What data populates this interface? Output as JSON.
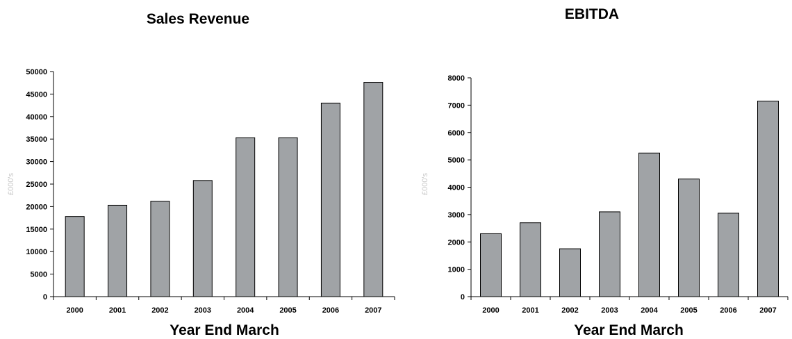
{
  "chart_data": [
    {
      "type": "bar",
      "title": "Sales Revenue",
      "xlabel": "Year End March",
      "ylabel": "£000's",
      "categories": [
        "2000",
        "2001",
        "2002",
        "2003",
        "2004",
        "2005",
        "2006",
        "2007"
      ],
      "values": [
        17800,
        20300,
        21200,
        25800,
        35300,
        35300,
        43000,
        47600
      ],
      "ylim": [
        0,
        50000
      ],
      "yticks": [
        "0",
        "5000",
        "10000",
        "15000",
        "20000",
        "25000",
        "30000",
        "35000",
        "40000",
        "45000",
        "50000"
      ],
      "bar_color": "#a0a3a6",
      "grid": false,
      "legend": "none"
    },
    {
      "type": "bar",
      "title": "EBITDA",
      "xlabel": "Year End March",
      "ylabel": "£000's",
      "categories": [
        "2000",
        "2001",
        "2002",
        "2003",
        "2004",
        "2005",
        "2006",
        "2007"
      ],
      "values": [
        2300,
        2700,
        1750,
        3100,
        5250,
        4300,
        3050,
        7150
      ],
      "ylim": [
        0,
        8000
      ],
      "yticks": [
        "0",
        "1000",
        "2000",
        "3000",
        "4000",
        "5000",
        "6000",
        "7000",
        "8000"
      ],
      "bar_color": "#a0a3a6",
      "grid": false,
      "legend": "none"
    }
  ]
}
